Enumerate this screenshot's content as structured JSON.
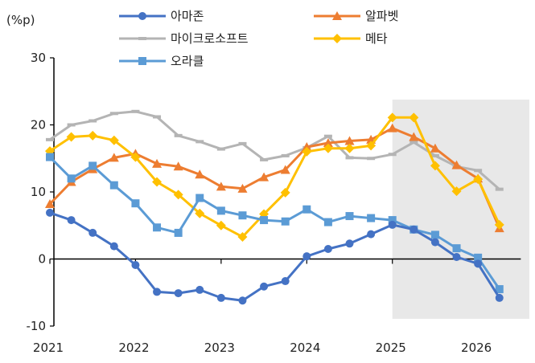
{
  "chart_data": {
    "type": "line",
    "title": "",
    "unit_label": "(%p)",
    "xlabel": "",
    "ylabel": "",
    "ylim": [
      -10,
      30
    ],
    "yticks": [
      -10,
      0,
      10,
      20,
      30
    ],
    "xlim": [
      2021.0,
      2026.6
    ],
    "xticks": [
      2021,
      2022,
      2023,
      2024,
      2025,
      2026
    ],
    "xtick_labels": [
      "2021",
      "2022",
      "2023",
      "2024",
      "2025",
      "2026"
    ],
    "shaded_region": [
      2025.0,
      2026.6
    ],
    "grid": false,
    "legend_position": "top",
    "x": [
      2021.0,
      2021.25,
      2021.5,
      2021.75,
      2022.0,
      2022.25,
      2022.5,
      2022.75,
      2023.0,
      2023.25,
      2023.5,
      2023.75,
      2024.0,
      2024.25,
      2024.5,
      2024.75,
      2025.0,
      2025.25,
      2025.5,
      2025.75,
      2026.0,
      2026.25
    ],
    "series": [
      {
        "name": "아마존",
        "color": "#4472c4",
        "marker": "circle",
        "values": [
          6.9,
          5.8,
          3.9,
          1.9,
          -0.9,
          -4.9,
          -5.1,
          -4.6,
          -5.8,
          -6.2,
          -4.1,
          -3.3,
          0.4,
          1.5,
          2.3,
          3.7,
          5.1,
          4.4,
          2.5,
          0.3,
          -0.7,
          -5.8
        ]
      },
      {
        "name": "알파벳",
        "color": "#ed7d31",
        "marker": "triangle",
        "values": [
          8.2,
          11.5,
          13.4,
          15.1,
          15.7,
          14.2,
          13.8,
          12.6,
          10.8,
          10.5,
          12.2,
          13.3,
          16.7,
          17.3,
          17.6,
          17.8,
          19.5,
          18.2,
          16.5,
          14.0,
          12.0,
          4.6
        ]
      },
      {
        "name": "마이크로소프트",
        "color": "#b4b4b4",
        "marker": "dash",
        "values": [
          17.8,
          20.0,
          20.6,
          21.7,
          22.0,
          21.2,
          18.4,
          17.5,
          16.4,
          17.2,
          14.8,
          15.4,
          16.6,
          18.3,
          15.1,
          15.0,
          15.6,
          17.4,
          15.4,
          13.8,
          13.2,
          10.4
        ]
      },
      {
        "name": "메타",
        "color": "#ffc000",
        "marker": "diamond",
        "values": [
          16.1,
          18.2,
          18.4,
          17.7,
          15.2,
          11.5,
          9.6,
          6.8,
          5.0,
          3.3,
          6.7,
          9.9,
          16.0,
          16.5,
          16.5,
          16.9,
          21.1,
          21.1,
          13.9,
          10.1,
          11.9,
          5.1
        ]
      },
      {
        "name": "오라클",
        "color": "#5b9bd5",
        "marker": "square",
        "values": [
          15.2,
          12.0,
          13.9,
          11.0,
          8.3,
          4.7,
          3.9,
          9.1,
          7.2,
          6.5,
          5.8,
          5.6,
          7.4,
          5.5,
          6.4,
          6.1,
          5.8,
          4.4,
          3.6,
          1.6,
          0.2,
          -4.5
        ]
      }
    ]
  }
}
